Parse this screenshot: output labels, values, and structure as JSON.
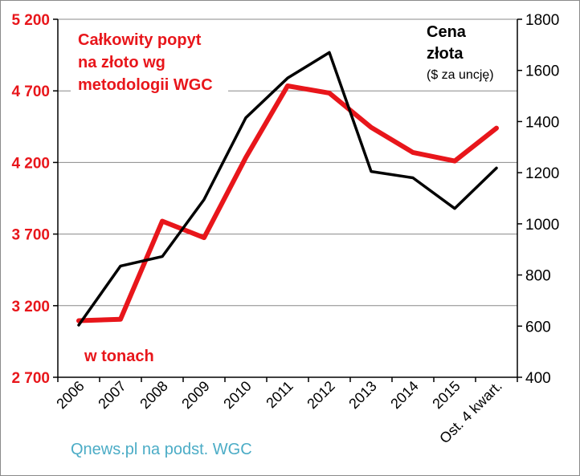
{
  "chart_data": {
    "type": "line",
    "categories": [
      "2006",
      "2007",
      "2008",
      "2009",
      "2010",
      "2011",
      "2012",
      "2013",
      "2014",
      "2015",
      "Ost. 4 kwart."
    ],
    "series": [
      {
        "name": "Całkowity popyt na złoto wg metodologii WGC",
        "axis": "left",
        "color": "#e8161b",
        "values": [
          3095,
          3105,
          3790,
          3675,
          4235,
          4735,
          4685,
          4445,
          4270,
          4210,
          4440
        ]
      },
      {
        "name": "Cena złota",
        "axis": "right",
        "color": "#000000",
        "values": [
          604,
          835,
          872,
          1095,
          1415,
          1570,
          1670,
          1205,
          1180,
          1060,
          1218
        ]
      }
    ],
    "y_left": {
      "min": 2700,
      "max": 5200,
      "ticks": [
        2700,
        3200,
        3700,
        4200,
        4700,
        5200
      ],
      "tick_labels": [
        "2 700",
        "3 200",
        "3 700",
        "4 200",
        "4 700",
        "5 200"
      ]
    },
    "y_right": {
      "min": 400,
      "max": 1800,
      "ticks": [
        400,
        600,
        800,
        1000,
        1200,
        1400,
        1600,
        1800
      ],
      "tick_labels": [
        "400",
        "600",
        "800",
        "1000",
        "1200",
        "1400",
        "1600",
        "1800"
      ]
    },
    "grid": true
  },
  "annotations": {
    "left_title_lines": [
      "Całkowity popyt",
      "na złoto wg",
      "metodologii WGC"
    ],
    "right_title_lines": [
      "Cena",
      "złota"
    ],
    "right_subtitle": "($ za uncję)",
    "unit_note": "w tonach",
    "source": "Qnews.pl na podst. WGC"
  }
}
